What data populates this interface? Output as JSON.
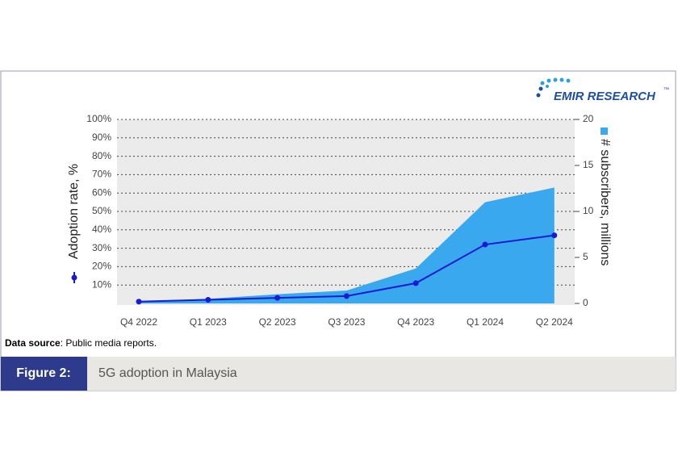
{
  "logo": {
    "text": "EMIR RESEARCH",
    "mark": "™"
  },
  "source": {
    "label": "Data source",
    "text": ": Public media reports."
  },
  "figure": {
    "label": "Figure 2:",
    "caption": "5G adoption in Malaysia"
  },
  "chart_data": {
    "type": "line",
    "ylabel": "Adoption rate, %",
    "y2label": "# subscribers, millions",
    "categories": [
      "Q4 2022",
      "Q1 2023",
      "Q2 2023",
      "Q3 2023",
      "Q4 2023",
      "Q1 2024",
      "Q2 2024"
    ],
    "series": [
      {
        "type": "area",
        "axis": "y2",
        "color": "#3aa8ee",
        "values": [
          0.2,
          0.5,
          1.0,
          1.4,
          3.8,
          11,
          12.6
        ]
      },
      {
        "type": "line",
        "axis": "y",
        "color": "#1b1bd1",
        "values": [
          1,
          2,
          3,
          4,
          11,
          32,
          37
        ]
      }
    ],
    "ylim": [
      0,
      100
    ],
    "yticks": [
      {
        "value": 10,
        "label": "10%"
      },
      {
        "value": 20,
        "label": "20%"
      },
      {
        "value": 30,
        "label": "30%"
      },
      {
        "value": 40,
        "label": "40%"
      },
      {
        "value": 50,
        "label": "50%"
      },
      {
        "value": 60,
        "label": "60%"
      },
      {
        "value": 70,
        "label": "70%"
      },
      {
        "value": 80,
        "label": "80%"
      },
      {
        "value": 90,
        "label": "90%"
      },
      {
        "value": 100,
        "label": "100%"
      }
    ],
    "y2lim": [
      0,
      20
    ],
    "y2ticks": [
      0,
      5,
      10,
      15,
      20
    ],
    "grid": true
  }
}
